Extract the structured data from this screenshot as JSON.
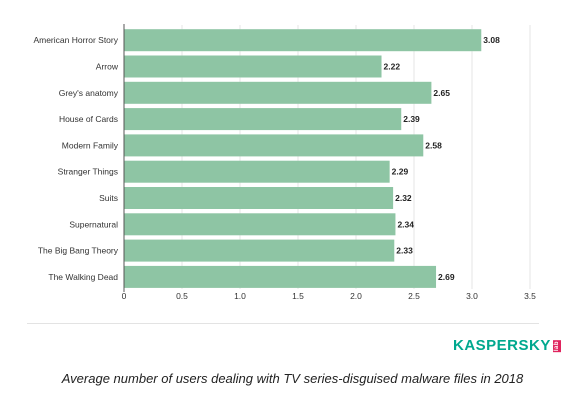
{
  "chart_data": {
    "type": "bar",
    "orientation": "horizontal",
    "categories": [
      "American Horror Story",
      "Arrow",
      "Grey's anatomy",
      "House of Cards",
      "Modern Family",
      "Stranger Things",
      "Suits",
      "Supernatural",
      "The Big Bang Theory",
      "The Walking Dead"
    ],
    "values": [
      3.08,
      2.22,
      2.65,
      2.39,
      2.58,
      2.29,
      2.32,
      2.34,
      2.33,
      2.69
    ],
    "value_labels": [
      "3.08",
      "2.22",
      "2.65",
      "2.39",
      "2.58",
      "2.29",
      "2.32",
      "2.34",
      "2.33",
      "2.69"
    ],
    "xticks": [
      0,
      0.5,
      1.0,
      1.5,
      2.0,
      2.5,
      3.0,
      3.5
    ],
    "xtick_labels": [
      "0",
      "0.5",
      "1.0",
      "1.5",
      "2.0",
      "2.5",
      "3.0",
      "3.5"
    ],
    "xlim": [
      0,
      3.5
    ],
    "grid": true,
    "bar_color": "#8ec5a4",
    "title": "",
    "xlabel": "",
    "ylabel": ""
  },
  "logo": {
    "brand_text": "KASPERSKY",
    "badge_text": "lab",
    "color": "#00a88e",
    "badge_color": "#e0245e"
  },
  "caption": "Average number of users dealing with TV series-disguised malware files in 2018"
}
